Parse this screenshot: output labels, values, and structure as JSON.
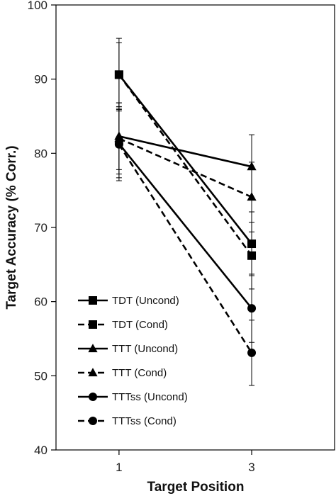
{
  "chart_data": {
    "type": "line",
    "xlabel": "Target Position",
    "ylabel": "Target Accuracy (% Corr.)",
    "x": [
      1,
      3
    ],
    "x_tick_labels": [
      "1",
      "3"
    ],
    "xlim": [
      0.05,
      4.25
    ],
    "ylim": [
      40,
      100
    ],
    "y_ticks": [
      40,
      50,
      60,
      70,
      80,
      90,
      100
    ],
    "y_tick_labels": [
      "40",
      "50",
      "60",
      "70",
      "80",
      "90",
      "100"
    ],
    "grid": false,
    "legend_position": "bottom-left",
    "series": [
      {
        "name": "TDT (Uncond)",
        "marker": "square",
        "line": "solid",
        "values": [
          90.6,
          67.8
        ],
        "err": [
          4.9,
          4.3
        ]
      },
      {
        "name": "TDT (Cond)",
        "marker": "square",
        "line": "dashed",
        "values": [
          90.6,
          66.2
        ],
        "err": [
          4.3,
          4.5
        ]
      },
      {
        "name": "TTT (Uncond)",
        "marker": "triangle",
        "line": "solid",
        "values": [
          82.3,
          78.2
        ],
        "err": [
          4.5,
          4.3
        ]
      },
      {
        "name": "TTT (Cond)",
        "marker": "triangle",
        "line": "dashed",
        "values": [
          82.0,
          74.1
        ],
        "err": [
          4.8,
          4.7
        ]
      },
      {
        "name": "TTTss (Uncond)",
        "marker": "circle",
        "line": "solid",
        "values": [
          81.3,
          59.1
        ],
        "err": [
          4.6,
          4.6
        ]
      },
      {
        "name": "TTTss (Cond)",
        "marker": "circle",
        "line": "dashed",
        "values": [
          81.2,
          53.1
        ],
        "err": [
          4.9,
          4.4
        ]
      }
    ]
  }
}
